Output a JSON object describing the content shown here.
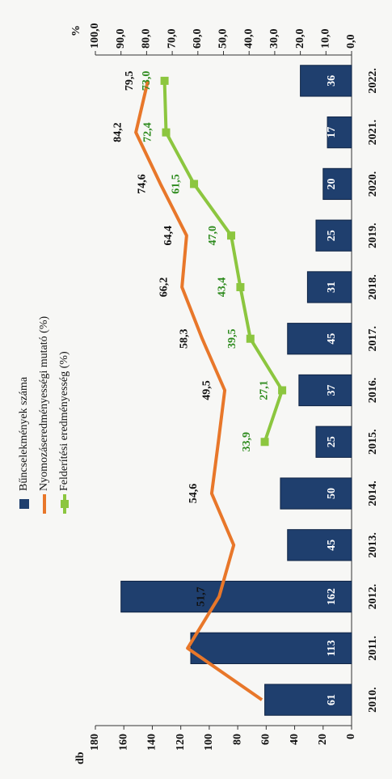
{
  "chart_data": {
    "type": "combo",
    "y_axis_label": "db",
    "y2_axis_label": "%",
    "categories": [
      "2010.",
      "2011.",
      "2012.",
      "2013.",
      "2014.",
      "2015.",
      "2016.",
      "2017.",
      "2018.",
      "2019.",
      "2020.",
      "2021.",
      "2022."
    ],
    "ylim": [
      0,
      180
    ],
    "yticks": [
      0,
      20,
      40,
      60,
      80,
      100,
      120,
      140,
      160,
      180
    ],
    "y2lim": [
      0,
      100
    ],
    "y2ticks": [
      {
        "value": 0,
        "label": "0,0"
      },
      {
        "value": 10,
        "label": "10,0"
      },
      {
        "value": 20,
        "label": "20,0"
      },
      {
        "value": 30,
        "label": "30,0"
      },
      {
        "value": 40,
        "label": "40,0"
      },
      {
        "value": 50,
        "label": "50,0"
      },
      {
        "value": 60,
        "label": "60,0"
      },
      {
        "value": 70,
        "label": "70,0"
      },
      {
        "value": 80,
        "label": "80,0"
      },
      {
        "value": 90,
        "label": "90,0"
      },
      {
        "value": 100,
        "label": "100,0"
      }
    ],
    "series": [
      {
        "name": "Bűncselekmények száma",
        "type": "bar",
        "color": "#1f3f6e",
        "values": [
          61,
          113,
          162,
          45,
          50,
          25,
          37,
          45,
          31,
          25,
          20,
          17,
          36
        ]
      },
      {
        "name": "Nyomozáseredményességi mutató (%)",
        "type": "line",
        "axis": "y2",
        "color": "#e8772a",
        "values": [
          35,
          64,
          51.7,
          46,
          54.6,
          52,
          49.5,
          58.3,
          66.2,
          64.4,
          74.6,
          84.2,
          79.5
        ],
        "value_labels": [
          null,
          null,
          "51,7",
          null,
          "54,6",
          null,
          "49,5",
          "58,3",
          "66,2",
          "64,4",
          "74,6",
          "84,2",
          "79,5"
        ],
        "label_color": "#111111"
      },
      {
        "name": "Felderítési eredményesség (%)",
        "type": "line",
        "axis": "y2",
        "color": "#8cc63f",
        "values": [
          null,
          null,
          null,
          null,
          null,
          33.9,
          27.1,
          39.5,
          43.4,
          47.0,
          61.5,
          72.4,
          73.0
        ],
        "value_labels": [
          null,
          null,
          null,
          null,
          null,
          "33,9",
          "27,1",
          "39,5",
          "43,4",
          "47,0",
          "61,5",
          "72,4",
          "73,0"
        ],
        "label_color": "#2e8b1e"
      }
    ]
  }
}
